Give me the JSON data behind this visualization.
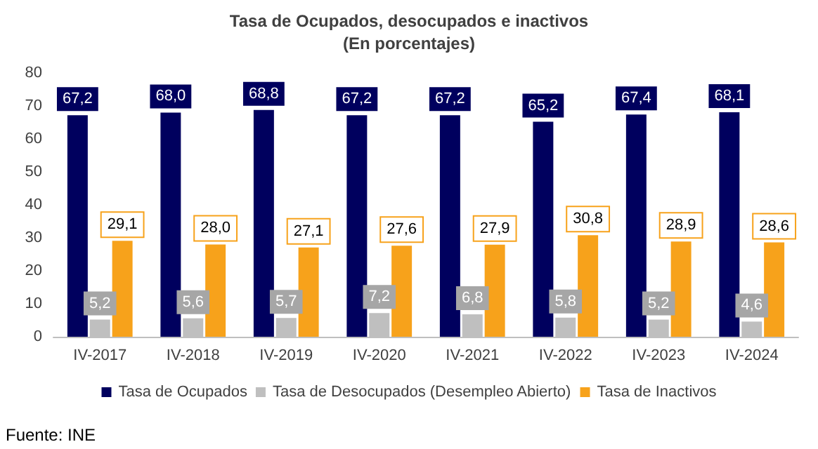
{
  "chart_data": {
    "type": "bar",
    "title": "Tasa de Ocupados, desocupados e inactivos",
    "subtitle": "(En porcentajes)",
    "categories": [
      "IV-2017",
      "IV-2018",
      "IV-2019",
      "IV-2020",
      "IV-2021",
      "IV-2022",
      "IV-2023",
      "IV-2024"
    ],
    "series": [
      {
        "name": "Tasa de Ocupados",
        "color": "#00005e",
        "values": [
          67.2,
          68.0,
          68.8,
          67.2,
          67.2,
          65.2,
          67.4,
          68.1
        ],
        "value_labels": [
          "67,2",
          "68,0",
          "68,8",
          "67,2",
          "67,2",
          "65,2",
          "67,4",
          "68,1"
        ]
      },
      {
        "name": "Tasa de Desocupados (Desempleo Abierto)",
        "color": "#bfbfbf",
        "values": [
          5.2,
          5.6,
          5.7,
          7.2,
          6.8,
          5.8,
          5.2,
          4.6
        ],
        "value_labels": [
          "5,2",
          "5,6",
          "5,7",
          "7,2",
          "6,8",
          "5,8",
          "5,2",
          "4,6"
        ]
      },
      {
        "name": "Tasa de Inactivos",
        "color": "#f7a21b",
        "values": [
          29.1,
          28.0,
          27.1,
          27.6,
          27.9,
          30.8,
          28.9,
          28.6
        ],
        "value_labels": [
          "29,1",
          "28,0",
          "27,1",
          "27,6",
          "27,9",
          "30,8",
          "28,9",
          "28,6"
        ]
      }
    ],
    "ylim": [
      0,
      80
    ],
    "yticks": [
      0,
      10,
      20,
      30,
      40,
      50,
      60,
      70,
      80
    ],
    "grid": false,
    "legend": "bottom",
    "annotations": [
      "Fuente: INE"
    ]
  }
}
